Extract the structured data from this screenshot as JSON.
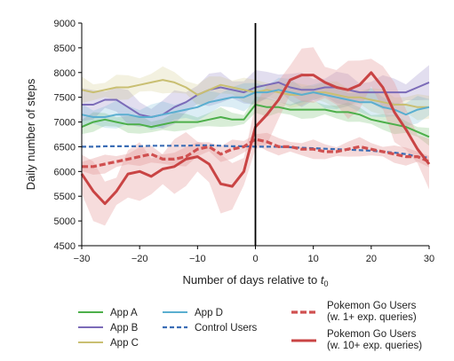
{
  "chart_data": {
    "type": "line",
    "xlabel_text": "Number of days relative to ",
    "xlabel_sub": "t",
    "xlabel_subscript": "0",
    "ylabel": "Daily number of steps",
    "xlim": [
      -30,
      30
    ],
    "ylim": [
      4500,
      9000
    ],
    "xticks": [
      -30,
      -20,
      -10,
      0,
      10,
      20,
      30
    ],
    "xtick_labels": [
      "−30",
      "−20",
      "−10",
      "0",
      "10",
      "20",
      "30"
    ],
    "yticks": [
      4500,
      5000,
      5500,
      6000,
      6500,
      7000,
      7500,
      8000,
      8500,
      9000
    ],
    "ytick_labels": [
      "4500",
      "5000",
      "5500",
      "6000",
      "6500",
      "7000",
      "7500",
      "8000",
      "8500",
      "9000"
    ],
    "vertical_line_x": 0,
    "x": [
      -30,
      -28,
      -26,
      -24,
      -22,
      -20,
      -18,
      -16,
      -14,
      -12,
      -10,
      -8,
      -6,
      -4,
      -2,
      0,
      2,
      4,
      6,
      8,
      10,
      12,
      14,
      16,
      18,
      20,
      22,
      24,
      26,
      28,
      30
    ],
    "series": [
      {
        "name": "App A",
        "color": "#4daf4a",
        "style": "solid",
        "width": 2,
        "values": [
          6900,
          7000,
          7050,
          7000,
          6950,
          6950,
          6900,
          6950,
          7000,
          7000,
          7000,
          7050,
          7100,
          7050,
          7050,
          7350,
          7300,
          7300,
          7250,
          7250,
          7250,
          7250,
          7200,
          7200,
          7150,
          7050,
          7000,
          6950,
          6900,
          6800,
          6700
        ],
        "band": 180,
        "band_color": "#4daf4a"
      },
      {
        "name": "App B",
        "color": "#7b6bb8",
        "style": "solid",
        "width": 2,
        "values": [
          7350,
          7350,
          7450,
          7450,
          7300,
          7150,
          7100,
          7150,
          7300,
          7400,
          7550,
          7650,
          7700,
          7650,
          7600,
          7700,
          7750,
          7800,
          7700,
          7650,
          7650,
          7700,
          7700,
          7650,
          7600,
          7600,
          7600,
          7600,
          7600,
          7700,
          7800
        ],
        "band": 320,
        "band_color": "#7b6bb8"
      },
      {
        "name": "App C",
        "color": "#c9bf72",
        "style": "solid",
        "width": 2,
        "values": [
          7650,
          7600,
          7650,
          7700,
          7700,
          7750,
          7800,
          7850,
          7800,
          7700,
          7550,
          7650,
          7750,
          7700,
          7650,
          7600,
          7650,
          7600,
          7550,
          7550,
          7600,
          7600,
          7550,
          7500,
          7500,
          7450,
          7400,
          7350,
          7350,
          7300,
          7300
        ],
        "band": 250,
        "band_color": "#c9bf72"
      },
      {
        "name": "App D",
        "color": "#5aaed0",
        "style": "solid",
        "width": 2,
        "values": [
          7150,
          7100,
          7100,
          7150,
          7150,
          7100,
          7100,
          7150,
          7200,
          7250,
          7300,
          7400,
          7450,
          7500,
          7500,
          7600,
          7600,
          7650,
          7600,
          7550,
          7600,
          7550,
          7500,
          7450,
          7400,
          7400,
          7300,
          7250,
          7150,
          7250,
          7300
        ],
        "band": 260,
        "band_color": "#5aaed0"
      },
      {
        "name": "Control Users",
        "color": "#3b6db5",
        "style": "dashed-fine",
        "width": 2.2,
        "values": [
          6500,
          6500,
          6510,
          6510,
          6510,
          6510,
          6520,
          6520,
          6520,
          6520,
          6530,
          6530,
          6520,
          6510,
          6510,
          6500,
          6500,
          6500,
          6490,
          6480,
          6470,
          6460,
          6450,
          6440,
          6430,
          6420,
          6400,
          6380,
          6350,
          6300,
          6280
        ],
        "band": 0,
        "band_color": "#3b6db5"
      },
      {
        "name": "Pokemon Go Users\n(w. 1+ exp. queries)",
        "color": "#d05050",
        "style": "dashed-bold",
        "width": 3.2,
        "values": [
          6100,
          6100,
          6150,
          6200,
          6250,
          6300,
          6350,
          6250,
          6250,
          6300,
          6450,
          6500,
          6350,
          6450,
          6500,
          6650,
          6600,
          6500,
          6500,
          6450,
          6450,
          6400,
          6400,
          6450,
          6500,
          6450,
          6400,
          6350,
          6300,
          6300,
          6200
        ],
        "band": 180,
        "band_color": "#d05050"
      },
      {
        "name": "Pokemon Go Users\n(w. 10+ exp. queries)",
        "color": "#c94444",
        "style": "solid",
        "width": 3,
        "values": [
          5950,
          5600,
          5350,
          5600,
          5950,
          6000,
          5900,
          6050,
          6100,
          6250,
          6300,
          6150,
          5750,
          5700,
          6000,
          6900,
          7150,
          7450,
          7850,
          7950,
          7950,
          7800,
          7700,
          7650,
          7750,
          8000,
          7700,
          7200,
          6850,
          6450,
          6150
        ],
        "band": 550,
        "band_color": "#e49a9a"
      }
    ],
    "legend": {
      "placement": "bottom",
      "col1": [
        "App A",
        "App B",
        "App C"
      ],
      "col2": [
        "App D",
        "Control Users"
      ],
      "col3": [
        "Pokemon Go Users",
        "(w. 1+ exp. queries)",
        "Pokemon Go Users",
        "(w. 10+ exp. queries)"
      ]
    },
    "grid": false
  }
}
